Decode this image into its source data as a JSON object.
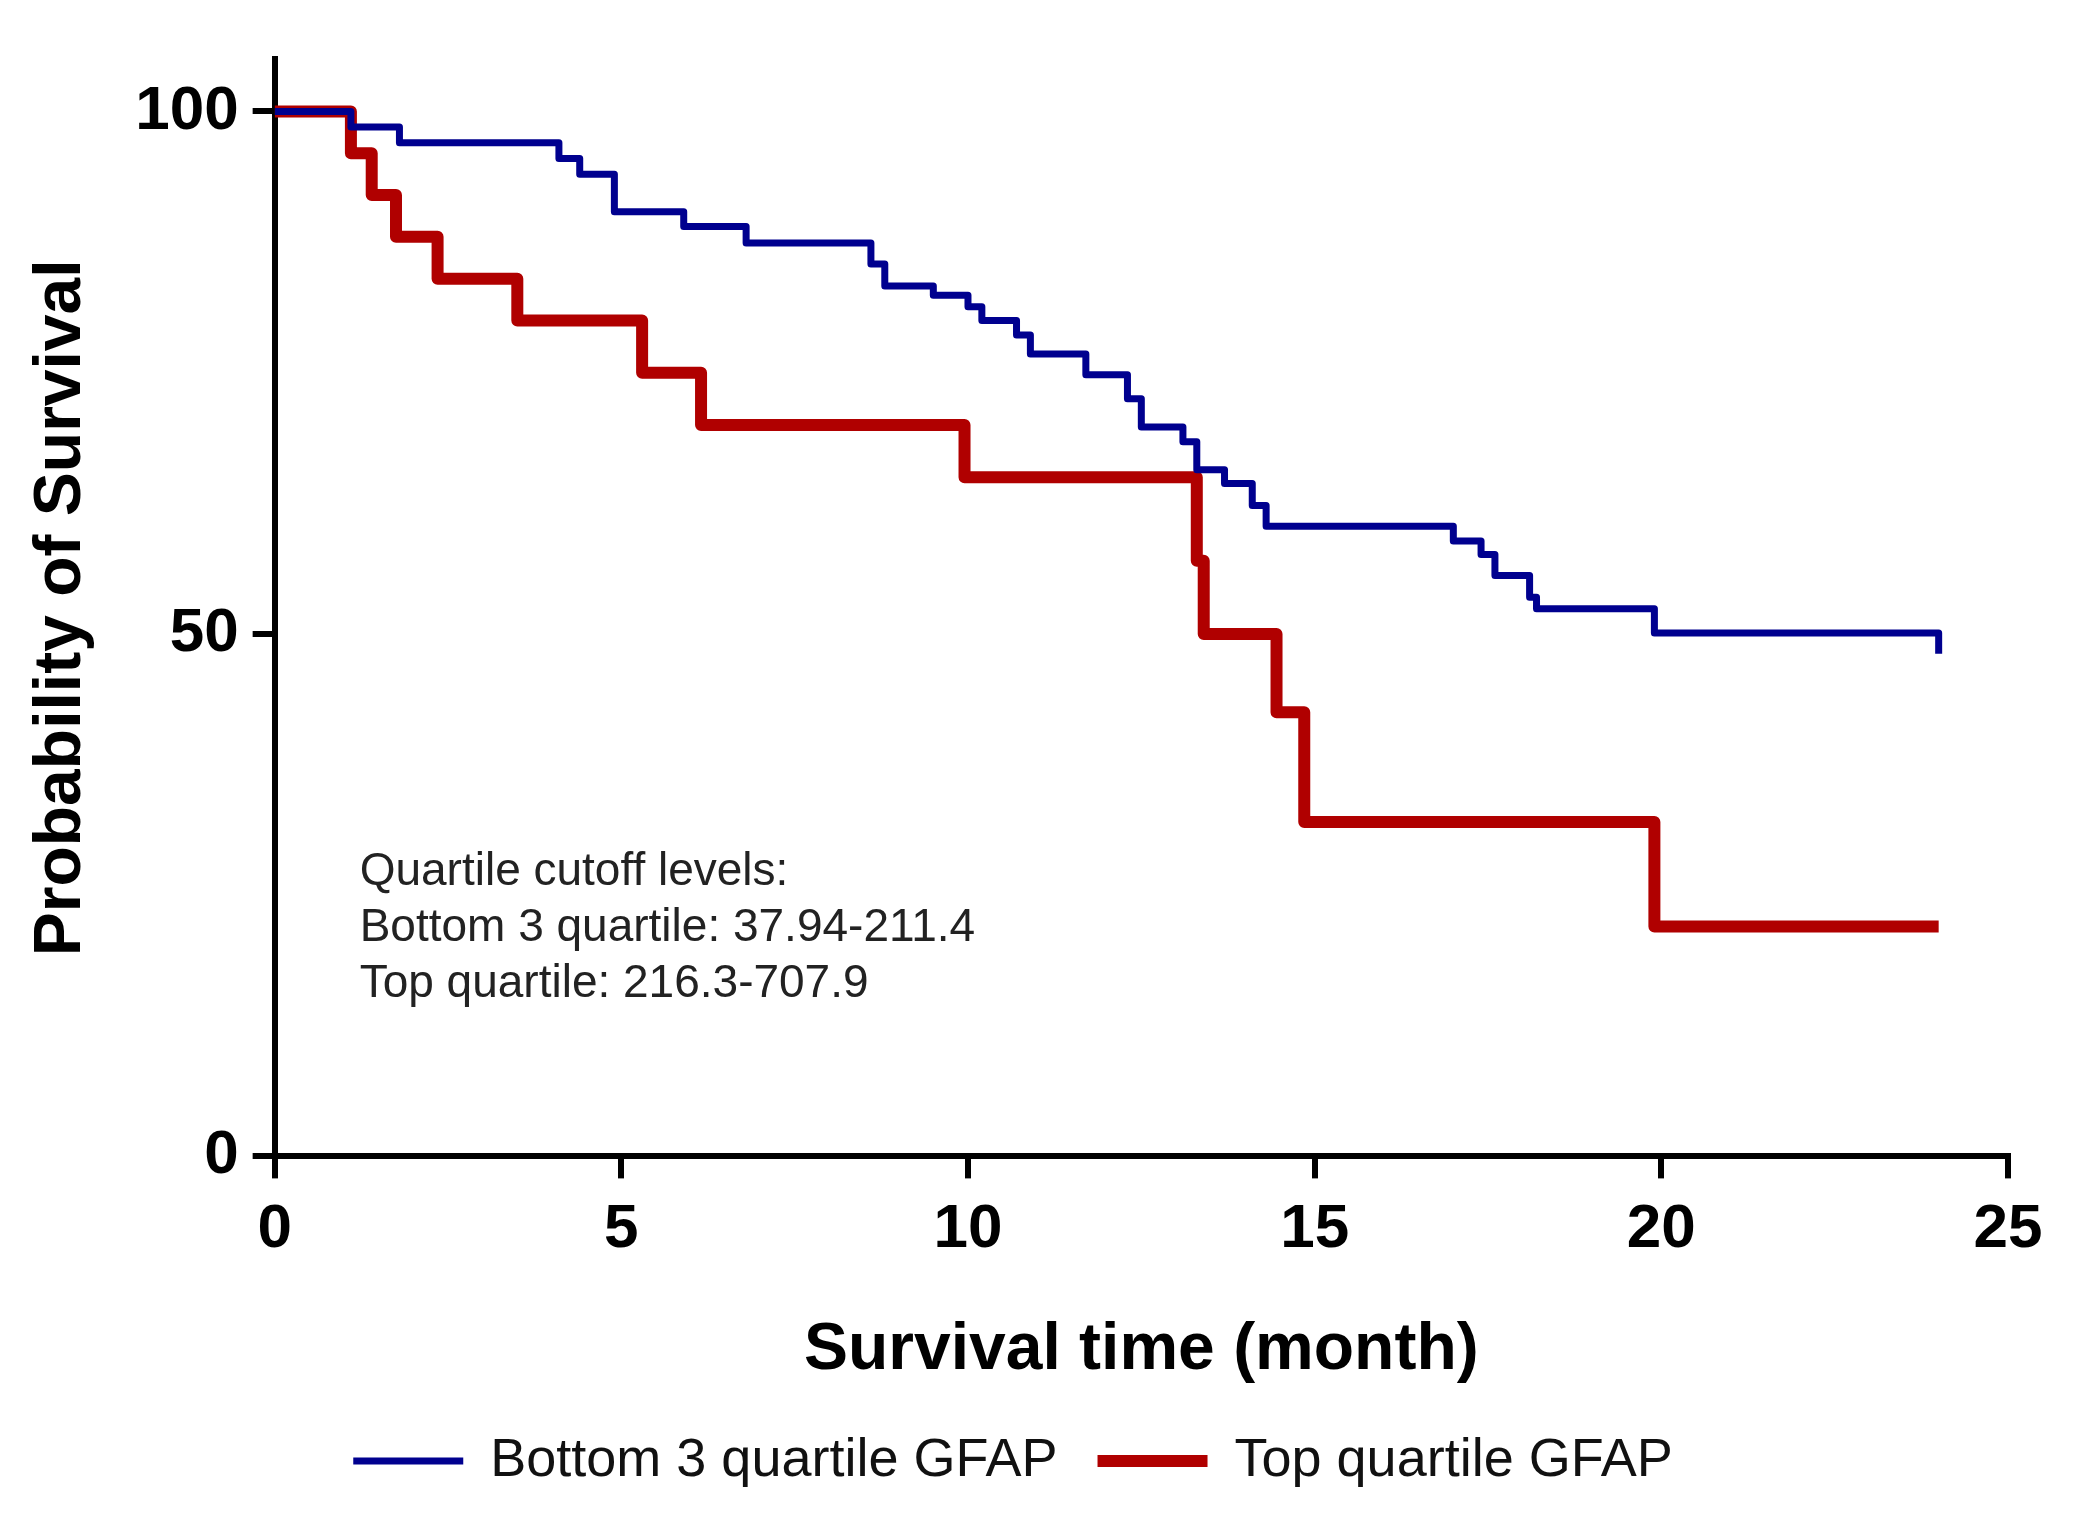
{
  "chart_data": {
    "type": "step",
    "xlabel": "Survival time (month)",
    "ylabel": "Probability of Survival",
    "xlim": [
      0,
      25
    ],
    "xticks": [
      0,
      5,
      10,
      15,
      20,
      25
    ],
    "ylim": [
      0,
      105
    ],
    "yticks": [
      0,
      50,
      100
    ],
    "grid": false,
    "legend": "bottom",
    "annotations": [
      "Quartile cutoff levels:",
      "Bottom 3 quartile: 37.94-211.4",
      "Top quartile: 216.3-707.9"
    ],
    "series": [
      {
        "name": "Bottom 3 quartile GFAP",
        "color": "#00008f",
        "x": [
          0,
          1.1,
          1.8,
          4.1,
          4.4,
          4.9,
          5.9,
          6.8,
          8.6,
          8.8,
          9.5,
          10,
          10.2,
          10.7,
          10.9,
          11.7,
          12.3,
          12.5,
          13.1,
          13.3,
          13.7,
          14.1,
          14.3,
          17,
          17.4,
          17.6,
          18.1,
          18.2,
          19.9,
          24
        ],
        "values": [
          100,
          98.5,
          97,
          95.5,
          94,
          90.4,
          89,
          87.4,
          85.4,
          83.3,
          82.4,
          81.3,
          80,
          78.6,
          76.8,
          74.8,
          72.5,
          69.8,
          68.4,
          65.7,
          64.4,
          62.3,
          60.3,
          58.9,
          57.6,
          55.6,
          53.5,
          52.4,
          50.1,
          48.1
        ]
      },
      {
        "name": "Top quartile GFAP",
        "color": "#b00000",
        "x": [
          0,
          1.1,
          1.4,
          1.75,
          2.35,
          3.5,
          5.3,
          6.15,
          9.95,
          13.3,
          13.4,
          14.45,
          14.85,
          19.9,
          24
        ],
        "values": [
          100,
          96,
          92,
          88,
          84,
          80,
          75,
          70,
          65,
          57,
          50,
          42.5,
          32,
          22,
          22
        ]
      }
    ]
  }
}
